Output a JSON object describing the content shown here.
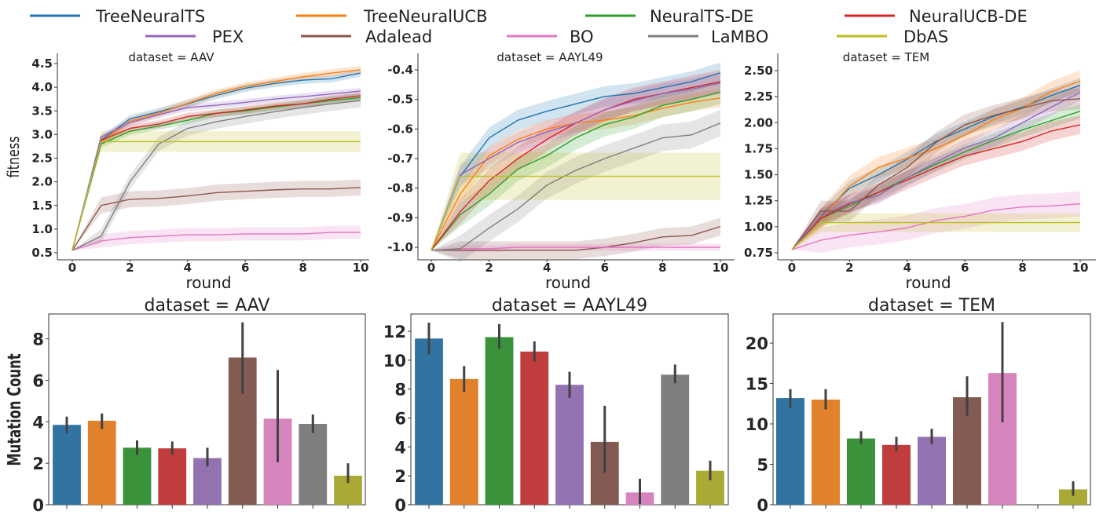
{
  "legend": {
    "placement": "top",
    "entries": [
      {
        "name": "TreeNeuralTS",
        "color": "#1f77b4"
      },
      {
        "name": "TreeNeuralUCB",
        "color": "#ff7f0e"
      },
      {
        "name": "NeuralTS-DE",
        "color": "#2ca02c"
      },
      {
        "name": "NeuralUCB-DE",
        "color": "#d62728"
      },
      {
        "name": "PEX",
        "color": "#9467bd"
      },
      {
        "name": "Adalead",
        "color": "#8c564b"
      },
      {
        "name": "BO",
        "color": "#e377c2"
      },
      {
        "name": "LaMBO",
        "color": "#7f7f7f"
      },
      {
        "name": "DbAS",
        "color": "#bcbd22"
      }
    ]
  },
  "chart_data": [
    {
      "type": "line",
      "title": "dataset = AAV",
      "xlabel": "round",
      "ylabel": "fitness",
      "x": [
        0,
        1,
        2,
        3,
        4,
        5,
        6,
        7,
        8,
        9,
        10
      ],
      "xticks": [
        0,
        2,
        4,
        6,
        8,
        10
      ],
      "yticks": [
        "0.5",
        "1.0",
        "1.5",
        "2.0",
        "2.5",
        "3.0",
        "3.5",
        "4.0",
        "4.5"
      ],
      "ylim": [
        0.5,
        4.5
      ],
      "grid": false,
      "series": [
        {
          "name": "TreeNeuralTS",
          "ci": 0.08,
          "values": [
            0.55,
            2.88,
            3.33,
            3.48,
            3.65,
            3.83,
            3.98,
            4.08,
            4.15,
            4.18,
            4.3
          ]
        },
        {
          "name": "TreeNeuralUCB",
          "ci": 0.08,
          "values": [
            0.55,
            2.85,
            3.28,
            3.45,
            3.66,
            3.87,
            4.02,
            4.12,
            4.22,
            4.3,
            4.37
          ]
        },
        {
          "name": "NeuralTS-DE",
          "ci": 0.08,
          "values": [
            0.55,
            2.8,
            3.07,
            3.18,
            3.3,
            3.45,
            3.5,
            3.58,
            3.65,
            3.72,
            3.78
          ]
        },
        {
          "name": "NeuralUCB-DE",
          "ci": 0.08,
          "values": [
            0.55,
            2.88,
            3.13,
            3.22,
            3.38,
            3.45,
            3.52,
            3.6,
            3.65,
            3.75,
            3.82
          ]
        },
        {
          "name": "PEX",
          "ci": 0.07,
          "values": [
            0.55,
            2.95,
            3.25,
            3.42,
            3.57,
            3.62,
            3.68,
            3.75,
            3.8,
            3.86,
            3.92
          ]
        },
        {
          "name": "Adalead",
          "ci": 0.17,
          "values": [
            0.55,
            1.5,
            1.63,
            1.65,
            1.7,
            1.77,
            1.8,
            1.83,
            1.85,
            1.85,
            1.88
          ]
        },
        {
          "name": "BO",
          "ci": 0.14,
          "values": [
            0.55,
            0.75,
            0.82,
            0.85,
            0.88,
            0.88,
            0.9,
            0.9,
            0.9,
            0.93,
            0.93
          ]
        },
        {
          "name": "LaMBO",
          "ci": 0.15,
          "values": [
            0.55,
            0.85,
            2.0,
            2.8,
            3.13,
            3.27,
            3.38,
            3.48,
            3.57,
            3.65,
            3.72
          ]
        },
        {
          "name": "DbAS",
          "ci": 0.22,
          "values": [
            0.55,
            2.85,
            2.85,
            2.85,
            2.85,
            2.85,
            2.85,
            2.85,
            2.85,
            2.85,
            2.85
          ]
        }
      ]
    },
    {
      "type": "line",
      "title": "dataset = AAYL49",
      "xlabel": "round",
      "ylabel": "",
      "x": [
        0,
        1,
        2,
        3,
        4,
        5,
        6,
        7,
        8,
        9,
        10
      ],
      "xticks": [
        0,
        2,
        4,
        6,
        8,
        10
      ],
      "yticks": [
        "-1.0",
        "-0.9",
        "-0.8",
        "-0.7",
        "-0.6",
        "-0.5",
        "-0.4"
      ],
      "ylim": [
        -1.0,
        -0.4
      ],
      "grid": false,
      "series": [
        {
          "name": "TreeNeuralTS",
          "ci": 0.035,
          "values": [
            -1.01,
            -0.76,
            -0.63,
            -0.57,
            -0.54,
            -0.515,
            -0.49,
            -0.48,
            -0.46,
            -0.44,
            -0.41
          ]
        },
        {
          "name": "TreeNeuralUCB",
          "ci": 0.03,
          "values": [
            -1.01,
            -0.82,
            -0.69,
            -0.635,
            -0.6,
            -0.58,
            -0.57,
            -0.555,
            -0.53,
            -0.51,
            -0.495
          ]
        },
        {
          "name": "NeuralTS-DE",
          "ci": 0.04,
          "values": [
            -1.01,
            -0.89,
            -0.82,
            -0.735,
            -0.69,
            -0.63,
            -0.585,
            -0.56,
            -0.52,
            -0.5,
            -0.475
          ]
        },
        {
          "name": "NeuralUCB-DE",
          "ci": 0.04,
          "values": [
            -1.01,
            -0.88,
            -0.775,
            -0.7,
            -0.635,
            -0.58,
            -0.535,
            -0.5,
            -0.48,
            -0.46,
            -0.44
          ]
        },
        {
          "name": "PEX",
          "ci": 0.035,
          "values": [
            -1.01,
            -0.755,
            -0.7,
            -0.645,
            -0.61,
            -0.58,
            -0.535,
            -0.505,
            -0.48,
            -0.465,
            -0.445
          ]
        },
        {
          "name": "Adalead",
          "ci": 0.03,
          "values": [
            -1.01,
            -1.01,
            -1.01,
            -1.01,
            -1.01,
            -1.01,
            -1.0,
            -0.985,
            -0.965,
            -0.96,
            -0.93
          ]
        },
        {
          "name": "BO",
          "ci": 0.012,
          "values": [
            -1.01,
            -1.005,
            -1.005,
            -1.0,
            -1.0,
            -1.0,
            -1.0,
            -1.0,
            -1.0,
            -1.0,
            -1.0
          ]
        },
        {
          "name": "LaMBO",
          "ci": 0.045,
          "values": [
            -1.01,
            -1.005,
            -0.935,
            -0.87,
            -0.79,
            -0.74,
            -0.7,
            -0.665,
            -0.63,
            -0.62,
            -0.58
          ]
        },
        {
          "name": "DbAS",
          "ci": 0.08,
          "values": [
            -1.01,
            -0.76,
            -0.76,
            -0.76,
            -0.76,
            -0.76,
            -0.76,
            -0.76,
            -0.76,
            -0.76,
            -0.76
          ]
        }
      ]
    },
    {
      "type": "line",
      "title": "dataset = TEM",
      "xlabel": "round",
      "ylabel": "",
      "x": [
        0,
        1,
        2,
        3,
        4,
        5,
        6,
        7,
        8,
        9,
        10
      ],
      "xticks": [
        0,
        2,
        4,
        6,
        8,
        10
      ],
      "yticks": [
        "0.75",
        "1.00",
        "1.25",
        "1.50",
        "1.75",
        "2.00",
        "2.25",
        "2.50"
      ],
      "ylim": [
        0.75,
        2.5
      ],
      "grid": false,
      "series": [
        {
          "name": "TreeNeuralTS",
          "ci": 0.07,
          "values": [
            0.78,
            1.1,
            1.37,
            1.5,
            1.65,
            1.82,
            1.94,
            2.06,
            2.15,
            2.26,
            2.36
          ]
        },
        {
          "name": "TreeNeuralUCB",
          "ci": 0.1,
          "values": [
            0.78,
            1.08,
            1.39,
            1.57,
            1.66,
            1.75,
            1.88,
            2.03,
            2.14,
            2.3,
            2.4
          ]
        },
        {
          "name": "NeuralTS-DE",
          "ci": 0.07,
          "values": [
            0.78,
            1.08,
            1.2,
            1.33,
            1.47,
            1.6,
            1.72,
            1.83,
            1.93,
            2.02,
            2.11
          ]
        },
        {
          "name": "NeuralUCB-DE",
          "ci": 0.09,
          "values": [
            0.78,
            1.08,
            1.22,
            1.33,
            1.45,
            1.57,
            1.68,
            1.75,
            1.82,
            1.92,
            1.98
          ]
        },
        {
          "name": "PEX",
          "ci": 0.08,
          "values": [
            0.78,
            1.1,
            1.23,
            1.3,
            1.47,
            1.62,
            1.76,
            1.85,
            2.0,
            2.15,
            2.29
          ]
        },
        {
          "name": "Adalead",
          "ci": 0.1,
          "values": [
            0.78,
            1.15,
            1.15,
            1.4,
            1.57,
            1.81,
            1.98,
            2.07,
            2.14,
            2.21,
            2.23
          ]
        },
        {
          "name": "BO",
          "ci": 0.12,
          "values": [
            0.78,
            0.87,
            0.92,
            0.95,
            0.99,
            1.06,
            1.1,
            1.16,
            1.19,
            1.2,
            1.22
          ]
        },
        {
          "name": "DbAS",
          "ci": 0.09,
          "values": [
            0.78,
            1.04,
            1.04,
            1.04,
            1.04,
            1.04,
            1.04,
            1.04,
            1.04,
            1.04,
            1.04
          ]
        }
      ]
    },
    {
      "type": "bar",
      "title": "dataset = AAV",
      "ylabel": "Mutation Count",
      "categories": [
        "TreeNeuralTS",
        "TreeNeuralUCB",
        "NeuralTS-DE",
        "NeuralUCB-DE",
        "PEX",
        "Adalead",
        "BO",
        "LaMBO",
        "DbAS"
      ],
      "colors": [
        "#3274a1",
        "#e1812c",
        "#3a923a",
        "#c03d3e",
        "#9372b2",
        "#845b53",
        "#d684bd",
        "#7f7f7f",
        "#a9aa35"
      ],
      "values": [
        3.85,
        4.05,
        2.75,
        2.72,
        2.25,
        7.1,
        4.15,
        3.9,
        1.4
      ],
      "errors": [
        [
          3.45,
          4.25
        ],
        [
          3.65,
          4.4
        ],
        [
          2.4,
          3.1
        ],
        [
          2.4,
          3.05
        ],
        [
          1.85,
          2.75
        ],
        [
          5.35,
          8.8
        ],
        [
          2.05,
          6.5
        ],
        [
          3.45,
          4.35
        ],
        [
          1.05,
          2.0
        ]
      ],
      "yticks": [
        0,
        2,
        4,
        6,
        8
      ],
      "ylim": [
        0,
        9.2
      ]
    },
    {
      "type": "bar",
      "title": "dataset = AAYL49",
      "ylabel": "",
      "categories": [
        "TreeNeuralTS",
        "TreeNeuralUCB",
        "NeuralTS-DE",
        "NeuralUCB-DE",
        "PEX",
        "Adalead",
        "BO",
        "LaMBO",
        "DbAS"
      ],
      "colors": [
        "#3274a1",
        "#e1812c",
        "#3a923a",
        "#c03d3e",
        "#9372b2",
        "#845b53",
        "#d684bd",
        "#7f7f7f",
        "#a9aa35"
      ],
      "values": [
        11.5,
        8.7,
        11.6,
        10.6,
        8.3,
        4.35,
        0.85,
        9.0,
        2.35
      ],
      "errors": [
        [
          10.4,
          12.6
        ],
        [
          7.8,
          9.6
        ],
        [
          10.8,
          12.5
        ],
        [
          9.9,
          11.3
        ],
        [
          7.4,
          9.2
        ],
        [
          2.2,
          6.85
        ],
        [
          0.05,
          1.8
        ],
        [
          8.4,
          9.7
        ],
        [
          1.7,
          3.05
        ]
      ],
      "yticks": [
        0,
        2,
        4,
        6,
        8,
        10,
        12
      ],
      "ylim": [
        0,
        13.2
      ]
    },
    {
      "type": "bar",
      "title": "dataset = TEM",
      "ylabel": "",
      "categories": [
        "TreeNeuralTS",
        "TreeNeuralUCB",
        "NeuralTS-DE",
        "NeuralUCB-DE",
        "PEX",
        "Adalead",
        "BO",
        "LaMBO",
        "DbAS"
      ],
      "colors": [
        "#3274a1",
        "#e1812c",
        "#3a923a",
        "#c03d3e",
        "#9372b2",
        "#845b53",
        "#d684bd",
        "#7f7f7f",
        "#a9aa35"
      ],
      "values": [
        13.2,
        13.0,
        8.2,
        7.4,
        8.4,
        13.3,
        16.3,
        null,
        1.9
      ],
      "errors": [
        [
          12.0,
          14.3
        ],
        [
          11.8,
          14.3
        ],
        [
          7.5,
          9.1
        ],
        [
          6.6,
          8.4
        ],
        [
          7.5,
          9.4
        ],
        [
          11.0,
          15.9
        ],
        [
          10.2,
          22.6
        ],
        null,
        [
          1.1,
          2.9
        ]
      ],
      "yticks": [
        0,
        5,
        10,
        15,
        20
      ],
      "ylim": [
        0,
        23.6
      ]
    }
  ]
}
